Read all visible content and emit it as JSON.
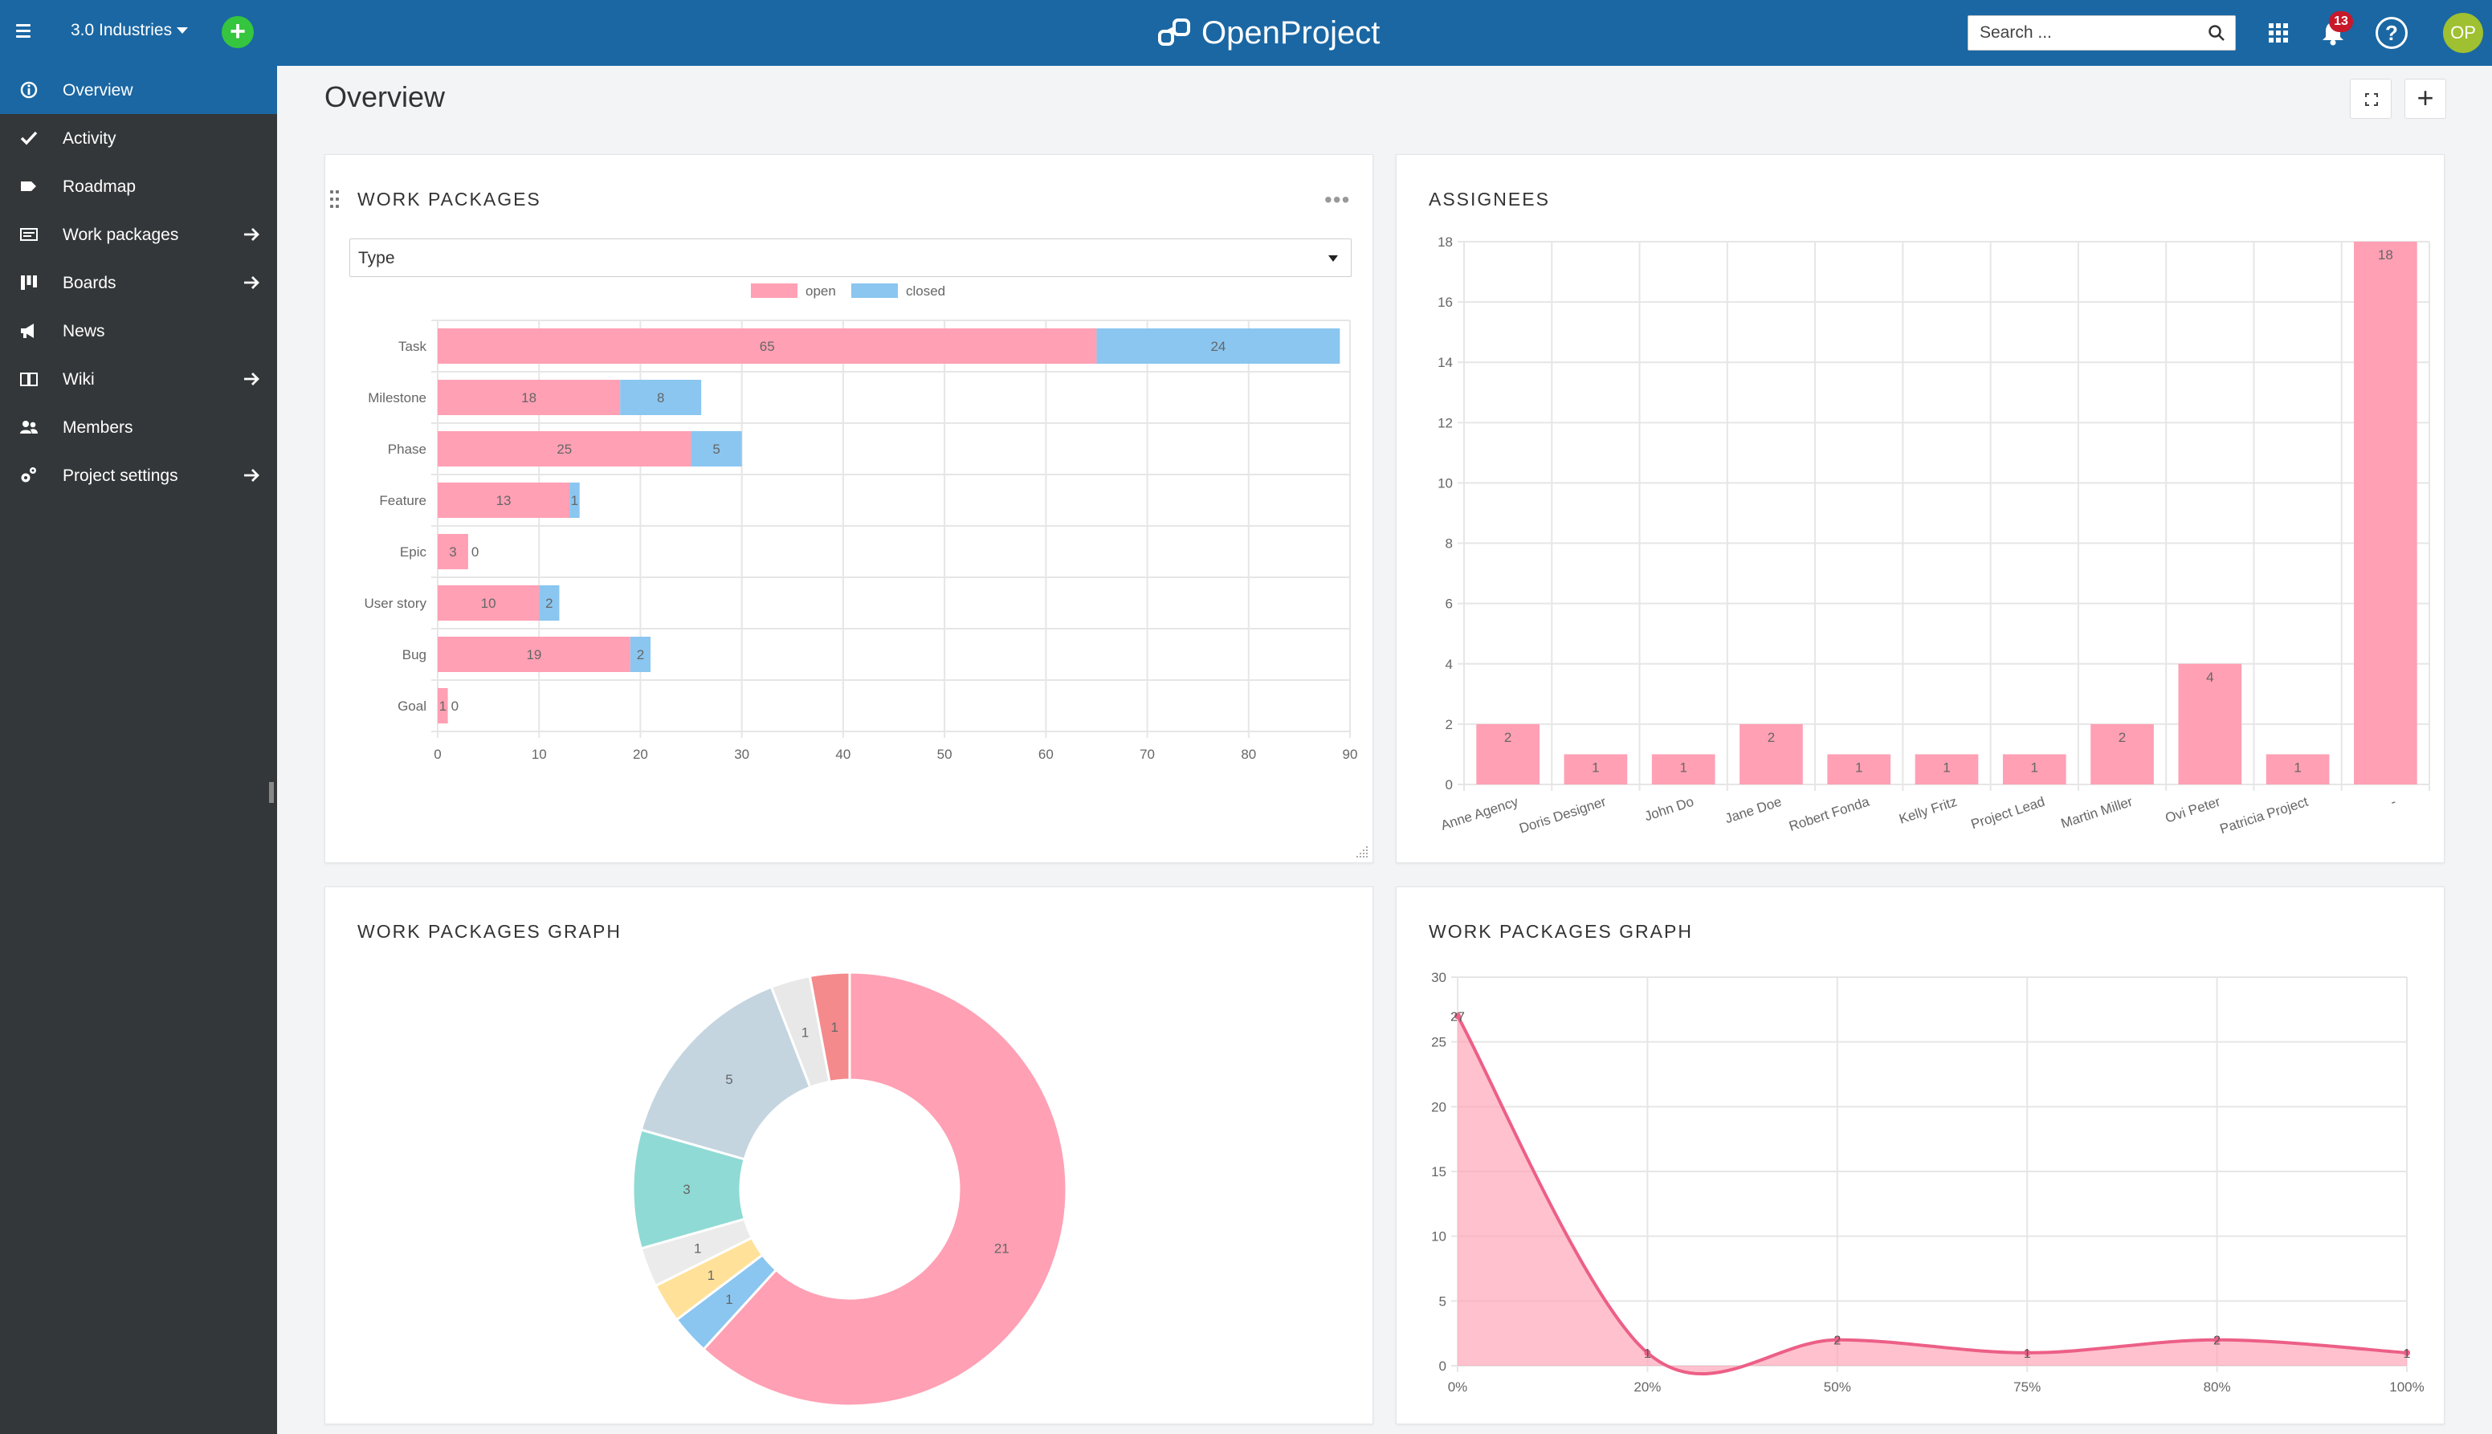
{
  "header": {
    "project_name": "3.0 Industries",
    "logo_text": "OpenProject",
    "search_placeholder": "Search ...",
    "notification_count": "13",
    "avatar_initials": "OP"
  },
  "sidebar": {
    "items": [
      {
        "label": "Overview",
        "icon": "info-icon",
        "active": true,
        "arrow": false
      },
      {
        "label": "Activity",
        "icon": "check-icon",
        "active": false,
        "arrow": false
      },
      {
        "label": "Roadmap",
        "icon": "tag-icon",
        "active": false,
        "arrow": false
      },
      {
        "label": "Work packages",
        "icon": "work-packages-icon",
        "active": false,
        "arrow": true
      },
      {
        "label": "Boards",
        "icon": "boards-icon",
        "active": false,
        "arrow": true
      },
      {
        "label": "News",
        "icon": "megaphone-icon",
        "active": false,
        "arrow": false
      },
      {
        "label": "Wiki",
        "icon": "book-icon",
        "active": false,
        "arrow": true
      },
      {
        "label": "Members",
        "icon": "members-icon",
        "active": false,
        "arrow": false
      },
      {
        "label": "Project settings",
        "icon": "settings-icon",
        "active": false,
        "arrow": true
      }
    ]
  },
  "page": {
    "title": "Overview"
  },
  "widgets": {
    "work_packages": {
      "title": "WORK PACKAGES",
      "group_by": "Type"
    },
    "assignees": {
      "title": "ASSIGNEES"
    },
    "graph_pie": {
      "title": "WORK PACKAGES GRAPH"
    },
    "graph_line": {
      "title": "WORK PACKAGES GRAPH"
    }
  },
  "colors": {
    "open": "#ffa0b4",
    "closed": "#8ac6f0",
    "brand": "#1a67a3",
    "line": "#ec5f86"
  },
  "chart_data": [
    {
      "type": "bar",
      "orientation": "horizontal",
      "stacked": true,
      "categories": [
        "Task",
        "Milestone",
        "Phase",
        "Feature",
        "Epic",
        "User story",
        "Bug",
        "Goal"
      ],
      "series": [
        {
          "name": "open",
          "values": [
            65,
            18,
            25,
            13,
            3,
            10,
            19,
            1
          ]
        },
        {
          "name": "closed",
          "values": [
            24,
            8,
            5,
            1,
            0,
            2,
            2,
            0
          ]
        }
      ],
      "xlim": [
        0,
        90
      ],
      "xticks": [
        0,
        10,
        20,
        30,
        40,
        50,
        60,
        70,
        80,
        90
      ],
      "legend": "top",
      "grid": true
    },
    {
      "type": "bar",
      "categories": [
        "Anne Agency",
        "Doris Designer",
        "John Do",
        "Jane Doe",
        "Robert Fonda",
        "Kelly Fritz",
        "Project Lead",
        "Martin Miller",
        "Ovi Peter",
        "Patricia Project",
        "-"
      ],
      "values": [
        2,
        1,
        1,
        2,
        1,
        1,
        1,
        2,
        4,
        1,
        18
      ],
      "ylim": [
        0,
        18
      ],
      "yticks": [
        0,
        2,
        4,
        6,
        8,
        10,
        12,
        14,
        16,
        18
      ],
      "grid": true
    },
    {
      "type": "pie",
      "donut": true,
      "values": [
        21,
        1,
        1,
        1,
        3,
        5,
        1,
        1
      ],
      "colors": [
        "#ffa0b4",
        "#8ac6f0",
        "#ffe199",
        "#ebebeb",
        "#8fdad5",
        "#c4d5e0",
        "#e8e8e8",
        "#f48a8c"
      ]
    },
    {
      "type": "area",
      "categories": [
        "0%",
        "20%",
        "50%",
        "75%",
        "80%",
        "100%"
      ],
      "values": [
        27,
        1,
        2,
        1,
        2,
        1
      ],
      "ylim": [
        0,
        30
      ],
      "yticks": [
        0,
        5,
        10,
        15,
        20,
        25,
        30
      ],
      "grid": true
    }
  ]
}
